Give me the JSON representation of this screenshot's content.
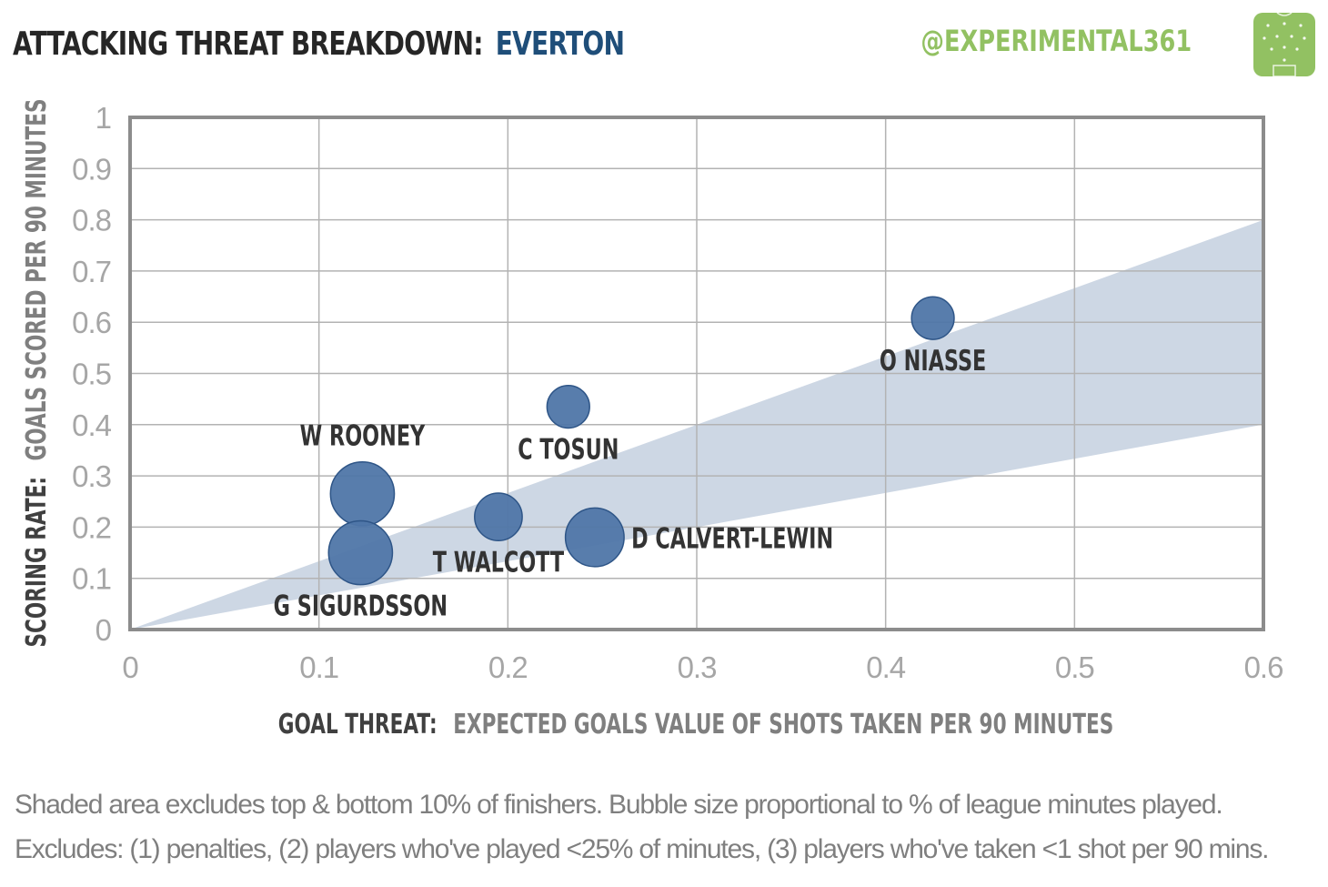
{
  "header": {
    "title_main": "ATTACKING THREAT BREAKDOWN:",
    "title_team": "EVERTON",
    "handle": "@EXPERIMENTAL361",
    "logo_icon": "pitch-logo-icon"
  },
  "footnotes": {
    "line1": "Shaded area excludes top & bottom 10% of finishers. Bubble size proportional to % of league minutes played.",
    "line2": "Excludes: (1) penalties, (2) players who've played <25% of minutes, (3) players who've taken <1 shot per 90 mins."
  },
  "colors": {
    "bubble_fill": "#4f76a8",
    "bubble_stroke": "#2e5587",
    "band_fill": "#cdd7e4",
    "grid": "#b3b3b3",
    "frame": "#8c8c8c",
    "tick_label": "#a6a6a6",
    "axis_title_dark": "#404040",
    "axis_title_light": "#7f7f7f",
    "team_color": "#1f4e79",
    "handle_color": "#92c162"
  },
  "chart_data": {
    "type": "scatter",
    "xlim": [
      0,
      0.6
    ],
    "ylim": [
      0,
      1
    ],
    "x_ticks": [
      "0",
      "0.1",
      "0.2",
      "0.3",
      "0.4",
      "0.5",
      "0.6"
    ],
    "y_ticks": [
      "0",
      "0.1",
      "0.2",
      "0.3",
      "0.4",
      "0.5",
      "0.6",
      "0.7",
      "0.8",
      "0.9",
      "1"
    ],
    "x_tick_values": [
      0,
      0.1,
      0.2,
      0.3,
      0.4,
      0.5,
      0.6
    ],
    "y_tick_values": [
      0,
      0.1,
      0.2,
      0.3,
      0.4,
      0.5,
      0.6,
      0.7,
      0.8,
      0.9,
      1
    ],
    "xlabel_bold": "GOAL THREAT:",
    "xlabel_rest": "EXPECTED GOALS VALUE OF SHOTS TAKEN PER 90 MINUTES",
    "ylabel_bold": "SCORING RATE:",
    "ylabel_rest": "GOALS SCORED PER 90 MINUTES",
    "grid": true,
    "shaded_band": {
      "lower_slope": 0.667,
      "upper_slope": 1.333
    },
    "points": [
      {
        "label": "W ROONEY",
        "x": 0.123,
        "y": 0.265,
        "minutes_share": 0.9,
        "label_pos": "above"
      },
      {
        "label": "G SIGURDSSON",
        "x": 0.122,
        "y": 0.15,
        "minutes_share": 0.9,
        "label_pos": "below"
      },
      {
        "label": "T WALCOTT",
        "x": 0.195,
        "y": 0.22,
        "minutes_share": 0.5,
        "label_pos": "below"
      },
      {
        "label": "C TOSUN",
        "x": 0.232,
        "y": 0.435,
        "minutes_share": 0.4,
        "label_pos": "below"
      },
      {
        "label": "D CALVERT-LEWIN",
        "x": 0.246,
        "y": 0.18,
        "minutes_share": 0.76,
        "label_pos": "right"
      },
      {
        "label": "O NIASSE",
        "x": 0.425,
        "y": 0.608,
        "minutes_share": 0.4,
        "label_pos": "below"
      }
    ]
  }
}
